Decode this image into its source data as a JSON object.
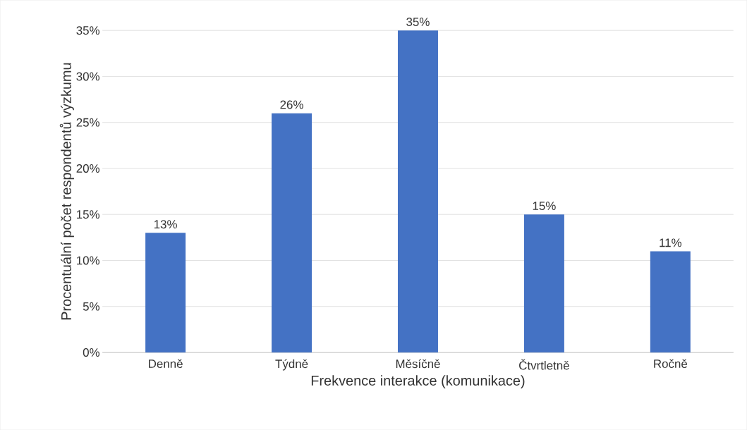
{
  "chart_data": {
    "type": "bar",
    "xlabel": "Frekvence interakce (komunikace)",
    "ylabel": "Procentuální počet respondentů výzkumu",
    "categories": [
      "Denně",
      "Týdně",
      "Měsíčně",
      "Čtvrtletně",
      "Ročně"
    ],
    "values": [
      13,
      26,
      35,
      15,
      11
    ],
    "value_labels": [
      "13%",
      "26%",
      "35%",
      "15%",
      "11%"
    ],
    "color": "#4472c4",
    "ylim": [
      0,
      35
    ],
    "yticks": [
      {
        "value": 0,
        "label": "0%"
      },
      {
        "value": 5,
        "label": "5%"
      },
      {
        "value": 10,
        "label": "10%"
      },
      {
        "value": 15,
        "label": "15%"
      },
      {
        "value": 20,
        "label": "20%"
      },
      {
        "value": 25,
        "label": "25%"
      },
      {
        "value": 30,
        "label": "30%"
      },
      {
        "value": 35,
        "label": "35%"
      }
    ],
    "grid": "y"
  }
}
